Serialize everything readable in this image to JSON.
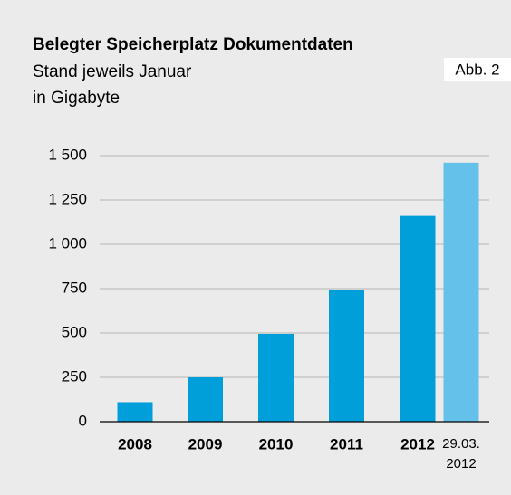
{
  "chart_data": {
    "type": "bar",
    "title": "Belegter Speicherplatz Dokumentdaten",
    "subtitle": [
      "Stand jeweils Januar",
      "in Gigabyte"
    ],
    "figure_label": "Abb. 2",
    "categories": [
      "2008",
      "2009",
      "2010",
      "2011",
      "2012",
      "29.03. 2012"
    ],
    "values": [
      110,
      250,
      495,
      740,
      1160,
      1460
    ],
    "colors": [
      "#009fda",
      "#009fda",
      "#009fda",
      "#009fda",
      "#009fda",
      "#63c1ea"
    ],
    "ylim": [
      0,
      1500
    ],
    "yticks": [
      0,
      250,
      500,
      750,
      {
        "value": 1000,
        "label": "1 000"
      },
      {
        "value": 1250,
        "label": "1 250"
      },
      {
        "value": 1500,
        "label": "1 500"
      }
    ],
    "grid": true
  }
}
